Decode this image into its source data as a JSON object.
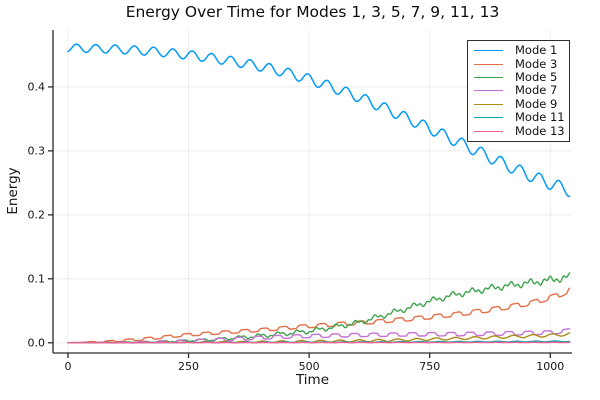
{
  "title": "Energy Over Time for Modes 1, 3, 5, 7, 9, 11, 13",
  "chart_data": {
    "type": "line",
    "title": "Energy Over Time for Modes 1, 3, 5, 7, 9, 11, 13",
    "xlabel": "Time",
    "ylabel": "Energy",
    "xlim": [
      -31,
      1045
    ],
    "ylim": [
      -0.016,
      0.489
    ],
    "grid": true,
    "grid_color": "rgba(0,0,0,0.07)",
    "axis_color": "#2a2a2a",
    "legend_position": "top-right-inside",
    "xticks": {
      "values": [
        0,
        250,
        500,
        750,
        1000
      ],
      "labels": [
        "0",
        "250",
        "500",
        "750",
        "1000"
      ]
    },
    "yticks": {
      "values": [
        0.0,
        0.1,
        0.2,
        0.3,
        0.4
      ],
      "labels": [
        "0.0",
        "0.1",
        "0.2",
        "0.3",
        "0.4"
      ]
    },
    "series": [
      {
        "name": "Mode 1",
        "color": "#009AFA",
        "linewidth": 1.5,
        "anchors_t": [
          0,
          50,
          100,
          150,
          200,
          250,
          300,
          350,
          400,
          450,
          500,
          550,
          600,
          650,
          700,
          750,
          800,
          850,
          900,
          950,
          1000,
          1040
        ],
        "anchors_e": [
          0.461,
          0.46,
          0.459,
          0.457,
          0.454,
          0.45,
          0.445,
          0.439,
          0.432,
          0.423,
          0.412,
          0.399,
          0.385,
          0.369,
          0.352,
          0.335,
          0.317,
          0.299,
          0.281,
          0.264,
          0.249,
          0.238
        ],
        "oscillation": {
          "amp": 0.0062,
          "period": 40,
          "phase": -1.2,
          "ampGrowth": 0.55,
          "grow": 0,
          "square": false
        }
      },
      {
        "name": "Mode 3",
        "color": "#E36F47",
        "linewidth": 1.4,
        "anchors_t": [
          0,
          80,
          160,
          240,
          320,
          400,
          480,
          560,
          640,
          720,
          800,
          880,
          960,
          1020,
          1040
        ],
        "anchors_e": [
          0.0,
          0.002,
          0.006,
          0.012,
          0.016,
          0.02,
          0.025,
          0.029,
          0.033,
          0.038,
          0.044,
          0.052,
          0.062,
          0.075,
          0.082
        ],
        "oscillation": {
          "amp": 0.0016,
          "period": 40,
          "phase": 0.6,
          "ampGrowth": 1.2,
          "grow": 150,
          "square": true
        }
      },
      {
        "name": "Mode 5",
        "color": "#3EA44E",
        "linewidth": 1.4,
        "anchors_t": [
          0,
          100,
          200,
          300,
          400,
          500,
          600,
          650,
          700,
          750,
          800,
          850,
          900,
          950,
          1000,
          1040
        ],
        "anchors_e": [
          0.0,
          0.0005,
          0.002,
          0.005,
          0.011,
          0.018,
          0.031,
          0.042,
          0.053,
          0.065,
          0.075,
          0.082,
          0.088,
          0.093,
          0.098,
          0.103
        ],
        "oscillation": {
          "amp": 0.0018,
          "period": 40,
          "phase": 2.0,
          "ampGrowth": 1.0,
          "grow": 400,
          "square": false,
          "amp2": 0.003,
          "period2": 13.5,
          "phase2": 1.0
        }
      },
      {
        "name": "Mode 7",
        "color": "#C371D2",
        "linewidth": 1.4,
        "anchors_t": [
          0,
          100,
          200,
          300,
          350,
          400,
          450,
          500,
          600,
          700,
          800,
          900,
          1000,
          1040
        ],
        "anchors_e": [
          0.0,
          0.0005,
          0.0015,
          0.004,
          0.006,
          0.008,
          0.0095,
          0.0105,
          0.012,
          0.013,
          0.0135,
          0.0145,
          0.016,
          0.019
        ],
        "oscillation": {
          "amp": 0.0022,
          "period": 40,
          "phase": 2.5,
          "ampGrowth": 0.3,
          "grow": 300,
          "square": true
        }
      },
      {
        "name": "Mode 9",
        "color": "#AC8E18",
        "linewidth": 1.4,
        "anchors_t": [
          0,
          200,
          400,
          600,
          700,
          800,
          900,
          1000,
          1040
        ],
        "anchors_e": [
          0.0,
          0.0005,
          0.0015,
          0.003,
          0.0045,
          0.0065,
          0.009,
          0.0115,
          0.0135
        ],
        "oscillation": {
          "amp": 0.0009,
          "period": 40,
          "phase": 1.0,
          "ampGrowth": 1.5,
          "grow": 500,
          "square": false
        }
      },
      {
        "name": "Mode 11",
        "color": "#00AAAE",
        "linewidth": 1.4,
        "anchors_t": [
          0,
          300,
          600,
          900,
          1040
        ],
        "anchors_e": [
          0.0,
          0.0005,
          0.001,
          0.0018,
          0.0022
        ],
        "oscillation": {
          "amp": 0.0004,
          "period": 40,
          "phase": 0.0,
          "ampGrowth": 0.5,
          "grow": 400,
          "square": false
        }
      },
      {
        "name": "Mode 13",
        "color": "#ED5E93",
        "linewidth": 1.4,
        "anchors_t": [
          0,
          500,
          1040
        ],
        "anchors_e": [
          0.0,
          0.0003,
          0.0005
        ],
        "oscillation": {
          "amp": 0.00025,
          "period": 40,
          "phase": 0.5,
          "ampGrowth": 0.0,
          "grow": 400,
          "square": false
        }
      }
    ]
  }
}
